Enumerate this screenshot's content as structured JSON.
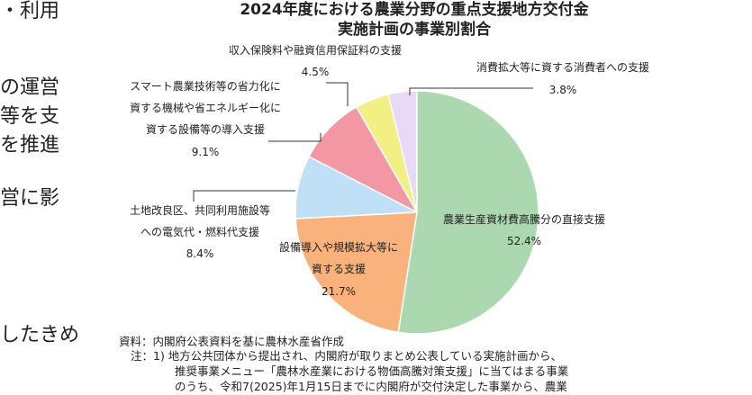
{
  "page_text": [
    "・利用",
    "の運営",
    "等を支",
    "を推進",
    "営に影",
    "したきめ"
  ],
  "chart_data": {
    "type": "pie",
    "title": "2024年度における農業分野の重点支援地方交付金",
    "subtitle": "実施計画の事業別割合",
    "categories": [
      "農業生産資材費高騰分の直接支援",
      "設備導入や規模拡大等に\n資する支援",
      "土地改良区、共同利用施設等\nへの電気代・燃料代支援",
      "スマート農業技術等の省力化に\n資する機械や省エネルギー化に\n資する設備等の導入支援",
      "収入保険料や融資信用保証料の支援",
      "消費拡大等に資する消費者への支援"
    ],
    "values": [
      52.4,
      21.7,
      8.4,
      9.1,
      4.5,
      3.8
    ],
    "value_labels": [
      "52.4%",
      "21.7%",
      "8.4%",
      "9.1%",
      "4.5%",
      "3.8%"
    ],
    "colors": [
      "#acd8b0",
      "#f9b27c",
      "#bfe0f7",
      "#f497a4",
      "#f2f085",
      "#e9d9f7"
    ],
    "notes": [
      "資料：内閣府公表資料を基に農林水産省作成",
      "注：1) 地方公共団体から提出され、内閣府が取りまとめ公表している実施計画から、",
      "推奨事業メニュー「農林水産業における物価高騰対策支援」に当てはまる事業",
      "のうち、令和7(2025)年1月15日までに内閣府が交付決定した事業から、農業"
    ]
  }
}
